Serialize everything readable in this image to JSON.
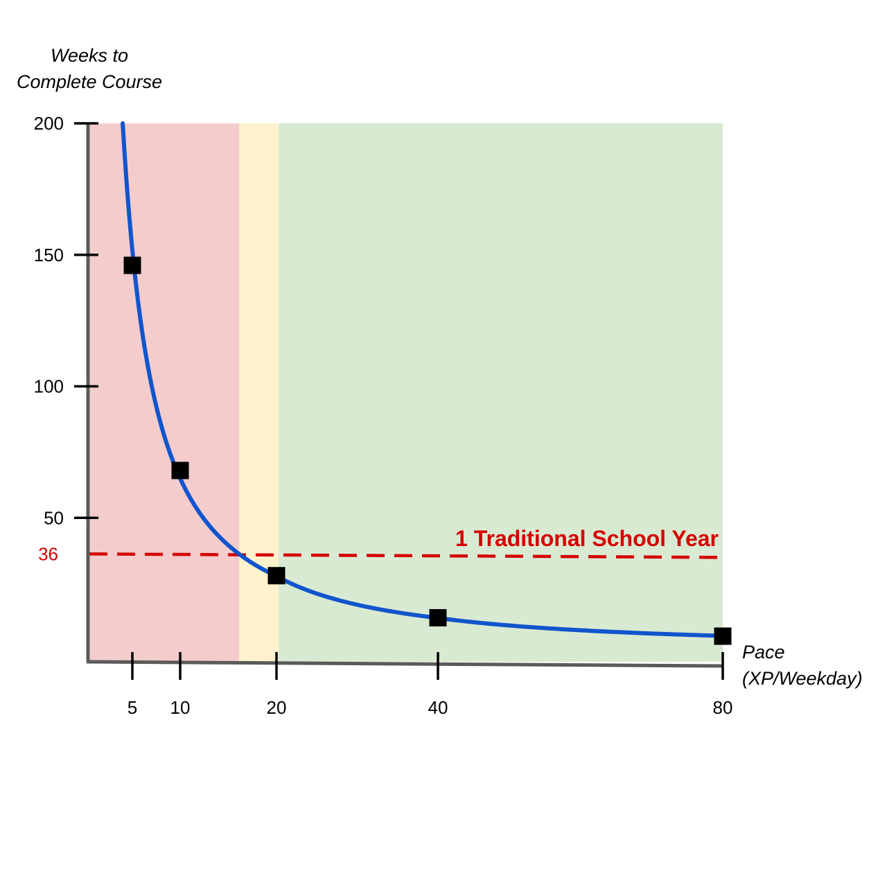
{
  "chart_data": {
    "type": "line",
    "ylabel_line1": "Weeks to",
    "ylabel_line2": "Complete Course",
    "xlabel_line1": "Pace",
    "xlabel_line2": "(XP/Weekday)",
    "y_ticks": [
      50,
      100,
      150,
      200
    ],
    "ylim": [
      0,
      200
    ],
    "x_ticks": [
      5,
      10,
      20,
      40,
      80
    ],
    "grid": false,
    "regions": [
      {
        "color": "#f4cccc"
      },
      {
        "color": "#fff2cc"
      },
      {
        "color": "#d9ead3"
      }
    ],
    "series": [
      {
        "color": "#1155cc",
        "x": [
          5,
          10,
          20,
          40,
          80
        ],
        "y": [
          146,
          68,
          28,
          12,
          5
        ]
      }
    ],
    "reference_line": {
      "value": 36,
      "value_label": "36",
      "label": "1 Traditional School Year",
      "color": "#d40000"
    }
  }
}
